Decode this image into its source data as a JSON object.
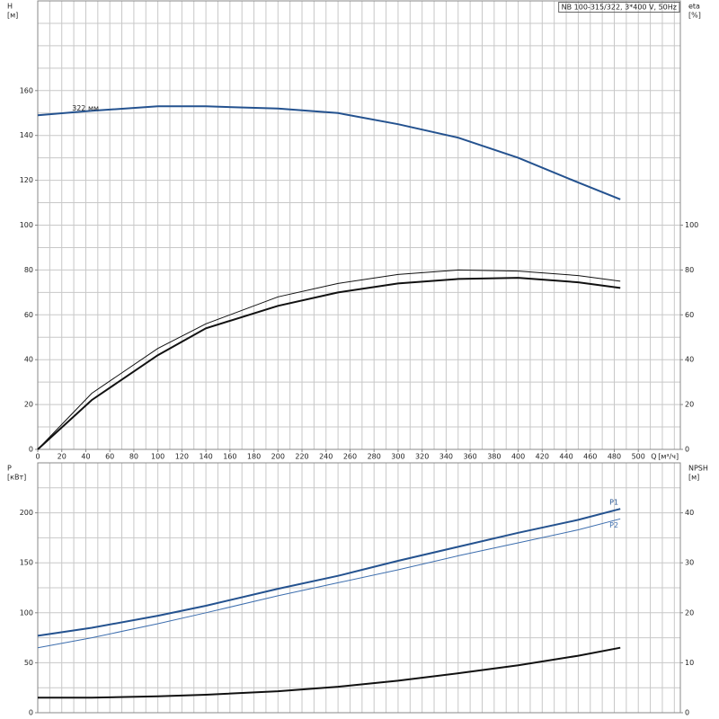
{
  "chart_data": [
    {
      "type": "line",
      "title": "NB 100-315/322, 3*400 V, 50Hz",
      "ylabel": "H",
      "yunit": "[м]",
      "y2label": "eta",
      "y2unit": "[%]",
      "xlabel": "Q",
      "xunit": "[м³/ч]",
      "annotation": "322 мм",
      "x": [
        0,
        45,
        100,
        140,
        200,
        250,
        300,
        350,
        400,
        450,
        485
      ],
      "xlim": [
        0,
        535
      ],
      "xticks": [
        0,
        20,
        40,
        60,
        80,
        100,
        120,
        140,
        160,
        180,
        200,
        220,
        240,
        260,
        280,
        300,
        320,
        340,
        360,
        380,
        400,
        420,
        440,
        460,
        480,
        500
      ],
      "ylim": [
        0,
        200
      ],
      "yticks": [
        0,
        20,
        40,
        60,
        80,
        100,
        120,
        140,
        160
      ],
      "y2lim": [
        0,
        200
      ],
      "y2ticks": [
        0,
        20,
        40,
        60,
        80,
        100
      ],
      "grid": true,
      "series": [
        {
          "color": "#24528f",
          "values": [
            149,
            151,
            153,
            153,
            152,
            150,
            145,
            139,
            130,
            119,
            111.5
          ]
        },
        {
          "color": "#111111",
          "axis": "y2",
          "values": [
            0,
            25,
            45,
            56,
            68,
            74,
            78,
            80,
            79.5,
            77.5,
            75
          ]
        },
        {
          "color": "#111111",
          "axis": "y2",
          "values": [
            0,
            22,
            42,
            54,
            64,
            70,
            74,
            76,
            76.5,
            74.5,
            72
          ]
        }
      ]
    },
    {
      "type": "line",
      "ylabel": "P",
      "yunit": "[кВт]",
      "y2label": "NPSH",
      "y2unit": "[м]",
      "x": [
        0,
        45,
        100,
        140,
        200,
        250,
        300,
        350,
        400,
        450,
        485
      ],
      "xlim": [
        0,
        535
      ],
      "ylim": [
        0,
        250
      ],
      "yticks": [
        0,
        50,
        100,
        150,
        200
      ],
      "y2lim": [
        0,
        50
      ],
      "y2ticks": [
        0,
        10,
        20,
        30,
        40
      ],
      "grid": true,
      "series": [
        {
          "name": "P1",
          "color": "#24528f",
          "values": [
            77,
            85,
            97,
            107,
            124,
            137,
            152,
            166,
            180,
            193,
            204
          ]
        },
        {
          "name": "P2",
          "color": "#3d6eae",
          "values": [
            65,
            75,
            89,
            100,
            117,
            130,
            143,
            157,
            170,
            183,
            194
          ]
        },
        {
          "color": "#111111",
          "axis": "y2",
          "values": [
            3,
            3,
            3.3,
            3.6,
            4.3,
            5.2,
            6.4,
            7.9,
            9.5,
            11.4,
            13
          ]
        }
      ]
    }
  ]
}
